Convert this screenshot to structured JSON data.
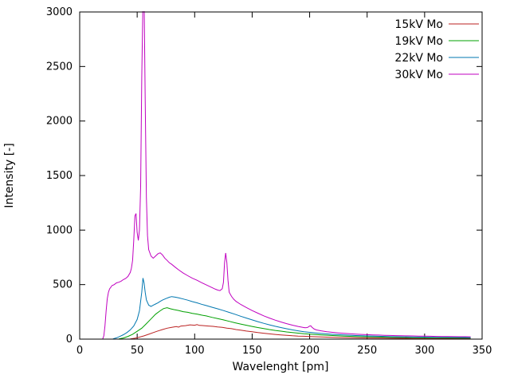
{
  "chart_data": {
    "type": "line",
    "title": "",
    "xlabel": "Wavelenght [pm]",
    "ylabel": "Intensity [-]",
    "xlim": [
      0,
      350
    ],
    "ylim": [
      0,
      3000
    ],
    "xticks": [
      0,
      50,
      100,
      150,
      200,
      250,
      300,
      350
    ],
    "yticks": [
      0,
      500,
      1000,
      1500,
      2000,
      2500,
      3000
    ],
    "grid": false,
    "legend_position": "top-right-inside",
    "series": [
      {
        "name": "15kV Mo",
        "color": "#bb2222",
        "points": [
          [
            44,
            2
          ],
          [
            48,
            8
          ],
          [
            52,
            18
          ],
          [
            56,
            30
          ],
          [
            60,
            45
          ],
          [
            64,
            60
          ],
          [
            68,
            75
          ],
          [
            72,
            88
          ],
          [
            76,
            100
          ],
          [
            80,
            108
          ],
          [
            84,
            115
          ],
          [
            86,
            110
          ],
          [
            88,
            120
          ],
          [
            92,
            124
          ],
          [
            96,
            131
          ],
          [
            100,
            127
          ],
          [
            102,
            133
          ],
          [
            104,
            126
          ],
          [
            108,
            124
          ],
          [
            112,
            120
          ],
          [
            116,
            117
          ],
          [
            120,
            112
          ],
          [
            124,
            108
          ],
          [
            128,
            100
          ],
          [
            132,
            96
          ],
          [
            136,
            88
          ],
          [
            140,
            82
          ],
          [
            145,
            74
          ],
          [
            150,
            67
          ],
          [
            155,
            60
          ],
          [
            160,
            54
          ],
          [
            165,
            48
          ],
          [
            170,
            43
          ],
          [
            175,
            39
          ],
          [
            180,
            35
          ],
          [
            185,
            31
          ],
          [
            190,
            28
          ],
          [
            195,
            26
          ],
          [
            200,
            24
          ],
          [
            210,
            20
          ],
          [
            220,
            17
          ],
          [
            230,
            14
          ],
          [
            240,
            12
          ],
          [
            250,
            10
          ],
          [
            260,
            9
          ],
          [
            270,
            8
          ],
          [
            280,
            7
          ],
          [
            290,
            6
          ],
          [
            300,
            6
          ],
          [
            310,
            5
          ],
          [
            320,
            5
          ],
          [
            330,
            4
          ],
          [
            340,
            4
          ]
        ]
      },
      {
        "name": "19kV Mo",
        "color": "#00a000",
        "points": [
          [
            34,
            2
          ],
          [
            38,
            10
          ],
          [
            42,
            25
          ],
          [
            46,
            45
          ],
          [
            50,
            72
          ],
          [
            54,
            100
          ],
          [
            58,
            142
          ],
          [
            62,
            185
          ],
          [
            66,
            228
          ],
          [
            70,
            260
          ],
          [
            73,
            280
          ],
          [
            76,
            288
          ],
          [
            79,
            278
          ],
          [
            82,
            271
          ],
          [
            86,
            263
          ],
          [
            90,
            252
          ],
          [
            94,
            246
          ],
          [
            98,
            236
          ],
          [
            102,
            230
          ],
          [
            106,
            220
          ],
          [
            110,
            213
          ],
          [
            115,
            200
          ],
          [
            120,
            188
          ],
          [
            125,
            176
          ],
          [
            130,
            163
          ],
          [
            135,
            150
          ],
          [
            140,
            138
          ],
          [
            145,
            127
          ],
          [
            150,
            116
          ],
          [
            155,
            106
          ],
          [
            160,
            97
          ],
          [
            165,
            88
          ],
          [
            170,
            80
          ],
          [
            175,
            73
          ],
          [
            180,
            66
          ],
          [
            185,
            60
          ],
          [
            190,
            55
          ],
          [
            195,
            50
          ],
          [
            200,
            46
          ],
          [
            210,
            39
          ],
          [
            220,
            33
          ],
          [
            230,
            28
          ],
          [
            240,
            24
          ],
          [
            250,
            21
          ],
          [
            260,
            19
          ],
          [
            270,
            17
          ],
          [
            280,
            15
          ],
          [
            290,
            14
          ],
          [
            300,
            13
          ],
          [
            310,
            12
          ],
          [
            320,
            11
          ],
          [
            330,
            10
          ],
          [
            340,
            10
          ]
        ]
      },
      {
        "name": "22kV Mo",
        "color": "#0077b0",
        "points": [
          [
            29,
            2
          ],
          [
            32,
            12
          ],
          [
            35,
            25
          ],
          [
            38,
            40
          ],
          [
            41,
            60
          ],
          [
            44,
            85
          ],
          [
            47,
            120
          ],
          [
            50,
            180
          ],
          [
            52,
            260
          ],
          [
            54,
            430
          ],
          [
            55,
            560
          ],
          [
            56,
            515
          ],
          [
            57,
            430
          ],
          [
            58,
            360
          ],
          [
            60,
            312
          ],
          [
            62,
            300
          ],
          [
            64,
            312
          ],
          [
            66,
            322
          ],
          [
            68,
            332
          ],
          [
            70,
            346
          ],
          [
            72,
            358
          ],
          [
            75,
            372
          ],
          [
            78,
            384
          ],
          [
            80,
            390
          ],
          [
            83,
            385
          ],
          [
            86,
            378
          ],
          [
            90,
            368
          ],
          [
            94,
            357
          ],
          [
            98,
            344
          ],
          [
            102,
            333
          ],
          [
            106,
            320
          ],
          [
            110,
            308
          ],
          [
            115,
            293
          ],
          [
            120,
            278
          ],
          [
            125,
            262
          ],
          [
            130,
            245
          ],
          [
            135,
            228
          ],
          [
            140,
            210
          ],
          [
            145,
            193
          ],
          [
            150,
            176
          ],
          [
            155,
            160
          ],
          [
            160,
            145
          ],
          [
            165,
            131
          ],
          [
            170,
            118
          ],
          [
            175,
            106
          ],
          [
            180,
            95
          ],
          [
            185,
            85
          ],
          [
            190,
            76
          ],
          [
            195,
            68
          ],
          [
            200,
            62
          ],
          [
            205,
            57
          ],
          [
            210,
            52
          ],
          [
            220,
            44
          ],
          [
            230,
            38
          ],
          [
            240,
            33
          ],
          [
            250,
            29
          ],
          [
            260,
            26
          ],
          [
            270,
            23
          ],
          [
            280,
            21
          ],
          [
            290,
            19
          ],
          [
            300,
            18
          ],
          [
            310,
            17
          ],
          [
            320,
            16
          ],
          [
            330,
            15
          ],
          [
            340,
            14
          ]
        ]
      },
      {
        "name": "30kV Mo",
        "color": "#c000c0",
        "points": [
          [
            20,
            2
          ],
          [
            21,
            30
          ],
          [
            22,
            120
          ],
          [
            23,
            260
          ],
          [
            24,
            370
          ],
          [
            25,
            430
          ],
          [
            26,
            460
          ],
          [
            27,
            475
          ],
          [
            28,
            490
          ],
          [
            30,
            500
          ],
          [
            32,
            516
          ],
          [
            34,
            522
          ],
          [
            36,
            531
          ],
          [
            38,
            546
          ],
          [
            40,
            556
          ],
          [
            42,
            575
          ],
          [
            44,
            612
          ],
          [
            45,
            650
          ],
          [
            46,
            722
          ],
          [
            47,
            900
          ],
          [
            48,
            1130
          ],
          [
            49,
            1152
          ],
          [
            50,
            980
          ],
          [
            51,
            905
          ],
          [
            52,
            1000
          ],
          [
            53,
            1400
          ],
          [
            54,
            2400
          ],
          [
            55,
            3100
          ],
          [
            56,
            3150
          ],
          [
            57,
            2200
          ],
          [
            58,
            1300
          ],
          [
            59,
            950
          ],
          [
            60,
            820
          ],
          [
            62,
            762
          ],
          [
            64,
            742
          ],
          [
            66,
            762
          ],
          [
            68,
            782
          ],
          [
            70,
            792
          ],
          [
            72,
            772
          ],
          [
            74,
            742
          ],
          [
            76,
            722
          ],
          [
            78,
            700
          ],
          [
            80,
            686
          ],
          [
            83,
            660
          ],
          [
            86,
            636
          ],
          [
            90,
            606
          ],
          [
            94,
            582
          ],
          [
            98,
            558
          ],
          [
            102,
            540
          ],
          [
            106,
            518
          ],
          [
            110,
            498
          ],
          [
            114,
            478
          ],
          [
            118,
            458
          ],
          [
            120,
            450
          ],
          [
            122,
            445
          ],
          [
            124,
            462
          ],
          [
            125,
            520
          ],
          [
            126,
            700
          ],
          [
            127,
            790
          ],
          [
            128,
            700
          ],
          [
            129,
            540
          ],
          [
            130,
            430
          ],
          [
            132,
            392
          ],
          [
            134,
            366
          ],
          [
            136,
            346
          ],
          [
            140,
            318
          ],
          [
            145,
            290
          ],
          [
            150,
            262
          ],
          [
            155,
            238
          ],
          [
            160,
            214
          ],
          [
            165,
            193
          ],
          [
            170,
            174
          ],
          [
            175,
            157
          ],
          [
            180,
            142
          ],
          [
            185,
            128
          ],
          [
            190,
            116
          ],
          [
            194,
            108
          ],
          [
            196,
            104
          ],
          [
            198,
            106
          ],
          [
            200,
            120
          ],
          [
            201,
            122
          ],
          [
            202,
            108
          ],
          [
            204,
            92
          ],
          [
            206,
            84
          ],
          [
            210,
            76
          ],
          [
            215,
            68
          ],
          [
            220,
            62
          ],
          [
            225,
            57
          ],
          [
            230,
            53
          ],
          [
            235,
            49
          ],
          [
            240,
            46
          ],
          [
            245,
            43
          ],
          [
            250,
            41
          ],
          [
            255,
            39
          ],
          [
            260,
            37
          ],
          [
            265,
            35
          ],
          [
            270,
            34
          ],
          [
            275,
            32
          ],
          [
            280,
            31
          ],
          [
            285,
            30
          ],
          [
            290,
            29
          ],
          [
            295,
            28
          ],
          [
            300,
            27
          ],
          [
            305,
            26
          ],
          [
            310,
            25
          ],
          [
            315,
            24
          ],
          [
            320,
            24
          ],
          [
            325,
            23
          ],
          [
            330,
            22
          ],
          [
            335,
            22
          ],
          [
            340,
            21
          ]
        ]
      }
    ]
  }
}
